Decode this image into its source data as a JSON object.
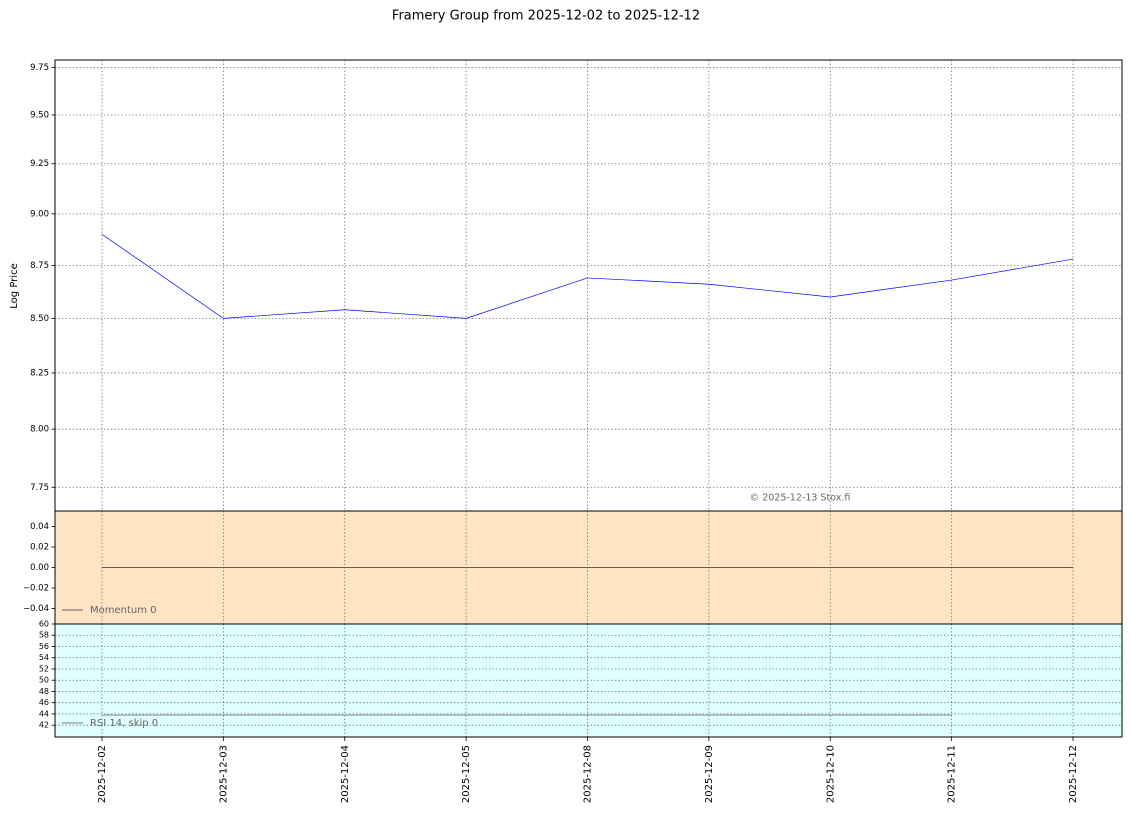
{
  "chart_data": [
    {
      "type": "line",
      "title": "Framery Group from 2025-12-02 to 2025-12-12",
      "ylabel": "Log Price",
      "categories": [
        "2025-12-02",
        "2025-12-03",
        "2025-12-04",
        "2025-12-05",
        "2025-12-08",
        "2025-12-09",
        "2025-12-10",
        "2025-12-11",
        "2025-12-12"
      ],
      "series": [
        {
          "color": "#0000ff",
          "values": [
            8.9,
            8.5,
            8.54,
            8.5,
            8.69,
            8.66,
            8.6,
            8.68,
            8.78
          ]
        }
      ],
      "yscale": "log",
      "ylim": [
        7.65,
        9.79
      ],
      "yticks": [
        {
          "value": 7.75,
          "label": "7.75"
        },
        {
          "value": 8.0,
          "label": "8.00"
        },
        8.25,
        {
          "value": 8.5,
          "label": "8.50"
        },
        8.75,
        {
          "value": 9.0,
          "label": "9.00"
        },
        9.25,
        {
          "value": 9.5,
          "label": "9.50"
        },
        9.75
      ],
      "grid": "both",
      "facecolor": "#ffffff",
      "annotation": "© 2025-12-13 Stox.fi"
    },
    {
      "type": "line",
      "series": [
        {
          "name": "Momentum 0",
          "color": "#333333",
          "values": [
            0,
            0,
            0,
            0,
            0,
            0,
            0,
            0,
            0
          ]
        }
      ],
      "ylim": [
        -0.055,
        0.055
      ],
      "yticks": [
        {
          "value": -0.04,
          "label": "−0.04"
        },
        {
          "value": -0.02,
          "label": "−0.02"
        },
        {
          "value": 0,
          "label": "0.00"
        },
        0.02,
        0.04
      ],
      "grid": "x",
      "facecolor": "#ffe4c4",
      "legend": "lower left"
    },
    {
      "type": "line",
      "series": [
        {
          "name": "RSI 14, skip 0",
          "color": "#555555",
          "values": [
            43.8,
            43.8,
            43.8,
            43.8,
            43.8,
            43.8,
            43.8,
            43.8,
            null
          ]
        }
      ],
      "ylim": [
        39.9,
        60
      ],
      "yticks": [
        42,
        44,
        46,
        48,
        50,
        52,
        54,
        56,
        58,
        60
      ],
      "grid": "both",
      "facecolor": "#e0ffff",
      "legend": "lower left"
    }
  ]
}
